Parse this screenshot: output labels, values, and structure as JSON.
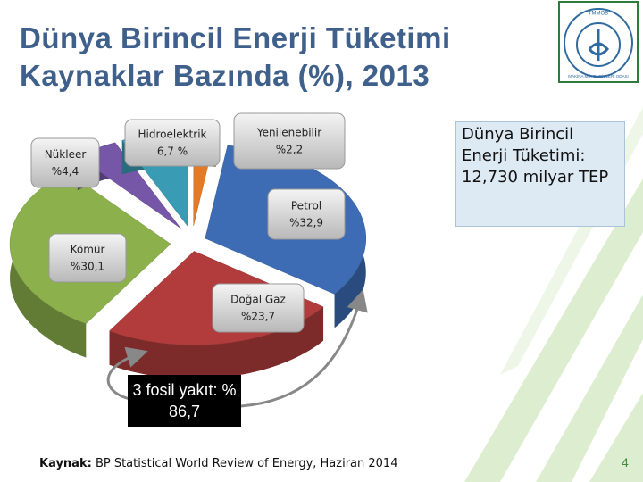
{
  "chart_data": {
    "type": "pie",
    "title": "Dünya Birincil Enerji Tüketimi Kaynaklar Bazında (%), 2013",
    "categories": [
      "Petrol",
      "Doğal Gaz",
      "Kömür",
      "Nükleer",
      "Hidroelektrik",
      "Yenilenebilir"
    ],
    "values": [
      32.9,
      23.7,
      30.1,
      4.4,
      6.7,
      2.2
    ],
    "value_labels": [
      "%32,9",
      "%23,7",
      "%30,1",
      "%4,4",
      "6,7 %",
      "%2,2"
    ],
    "colors": [
      "#3d6cb4",
      "#b23c3c",
      "#8cb04c",
      "#7656a6",
      "#3a9cb4",
      "#e27a28"
    ],
    "side_note": "Dünya Birincil Enerji Tüketimi: 12,730 milyar TEP",
    "annotation": "3 fosil yakıt: % 86,7",
    "source_label": "Kaynak:",
    "source_text": "BP Statistical World Review of Energy, Haziran 2014"
  },
  "logo": {
    "top": "TMMOB",
    "ring": "MAKİNA MÜHENDİSLERİ ODASI"
  },
  "page_number": "4"
}
